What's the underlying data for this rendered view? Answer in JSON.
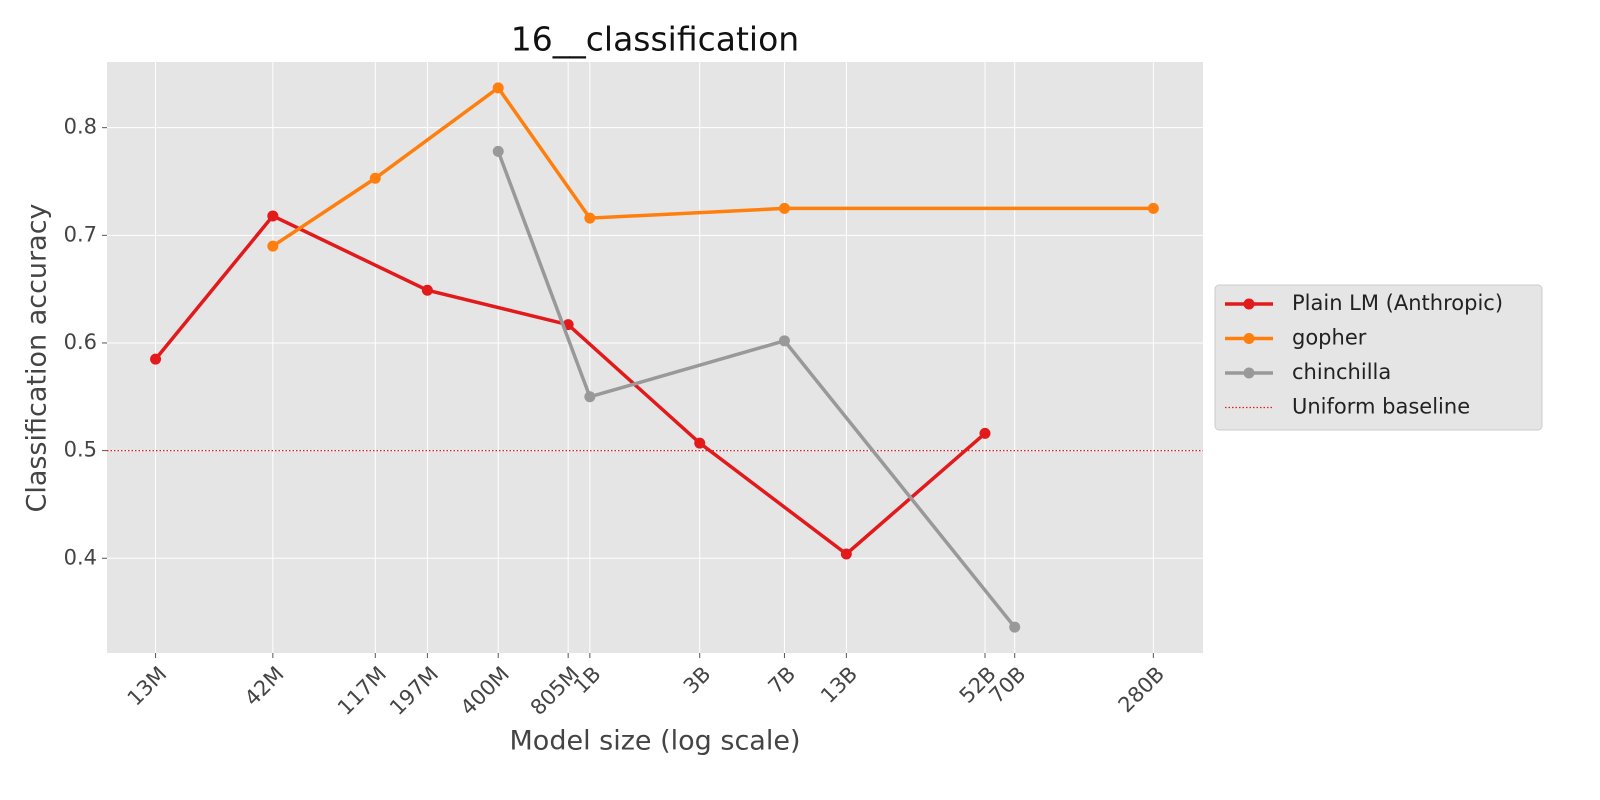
{
  "chart_data": {
    "type": "line",
    "title": "16__classification",
    "x_label": "Model size (log scale)",
    "y_label": "Classification accuracy",
    "xscale": "log",
    "grid": true,
    "legend": "right",
    "xlim": [
      8000000,
      460000000000
    ],
    "ylim": [
      0.312,
      0.861
    ],
    "xticks": [
      {
        "value": 13000000,
        "label": "13M"
      },
      {
        "value": 42000000,
        "label": "42M"
      },
      {
        "value": 117000000,
        "label": "117M"
      },
      {
        "value": 197000000,
        "label": "197M"
      },
      {
        "value": 400000000,
        "label": "400M"
      },
      {
        "value": 805000000,
        "label": "805M"
      },
      {
        "value": 1000000000,
        "label": "1B"
      },
      {
        "value": 3000000000,
        "label": "3B"
      },
      {
        "value": 7000000000,
        "label": "7B"
      },
      {
        "value": 13000000000,
        "label": "13B"
      },
      {
        "value": 52000000000,
        "label": "52B"
      },
      {
        "value": 70000000000,
        "label": "70B"
      },
      {
        "value": 280000000000,
        "label": "280B"
      }
    ],
    "yticks": [
      0.4,
      0.5,
      0.6,
      0.7,
      0.8
    ],
    "series": [
      {
        "name": "Plain LM (Anthropic)",
        "color": "#e31a1c",
        "x": [
          13000000,
          42000000,
          197000000,
          805000000,
          3000000000,
          13000000000,
          52000000000
        ],
        "values": [
          0.585,
          0.718,
          0.649,
          0.617,
          0.507,
          0.404,
          0.516
        ]
      },
      {
        "name": "gopher",
        "color": "#ff7f0e",
        "x": [
          42000000,
          117000000,
          400000000,
          1000000000,
          7000000000,
          280000000000
        ],
        "values": [
          0.69,
          0.753,
          0.837,
          0.716,
          0.725,
          0.725
        ]
      },
      {
        "name": "chinchilla",
        "color": "#999999",
        "x": [
          400000000,
          1000000000,
          7000000000,
          70000000000
        ],
        "values": [
          0.778,
          0.55,
          0.602,
          0.336
        ]
      }
    ],
    "baseline": {
      "name": "Uniform baseline",
      "value": 0.5,
      "color": "#e31a1c"
    }
  }
}
